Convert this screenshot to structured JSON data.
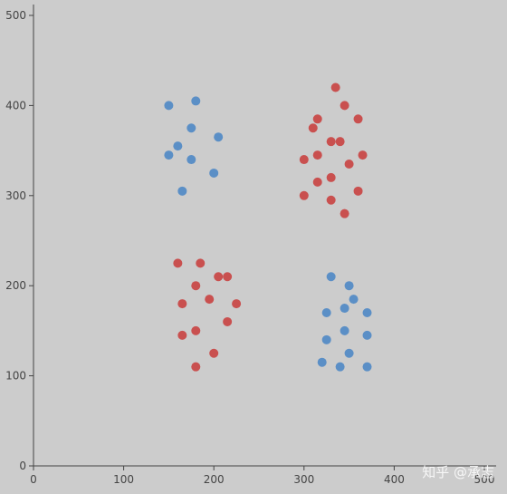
{
  "chart_data": {
    "type": "scatter",
    "title": "",
    "xlabel": "",
    "ylabel": "",
    "xlim": [
      0,
      500
    ],
    "ylim": [
      0,
      500
    ],
    "x_ticks": [
      "0",
      "100",
      "200",
      "300",
      "400",
      "500"
    ],
    "y_ticks": [
      "0",
      "100",
      "200",
      "300",
      "400",
      "500"
    ],
    "grid": false,
    "series": [
      {
        "color": "#5b8fc6",
        "points": [
          [
            180,
            405
          ],
          [
            150,
            400
          ],
          [
            175,
            375
          ],
          [
            205,
            365
          ],
          [
            160,
            355
          ],
          [
            150,
            345
          ],
          [
            175,
            340
          ],
          [
            200,
            325
          ],
          [
            165,
            305
          ],
          [
            330,
            210
          ],
          [
            350,
            200
          ],
          [
            355,
            185
          ],
          [
            345,
            175
          ],
          [
            325,
            170
          ],
          [
            370,
            170
          ],
          [
            345,
            150
          ],
          [
            370,
            145
          ],
          [
            325,
            140
          ],
          [
            350,
            125
          ],
          [
            320,
            115
          ],
          [
            340,
            110
          ],
          [
            370,
            110
          ]
        ]
      },
      {
        "color": "#c9504f",
        "points": [
          [
            335,
            420
          ],
          [
            345,
            400
          ],
          [
            315,
            385
          ],
          [
            360,
            385
          ],
          [
            310,
            375
          ],
          [
            330,
            360
          ],
          [
            340,
            360
          ],
          [
            315,
            345
          ],
          [
            365,
            345
          ],
          [
            300,
            340
          ],
          [
            350,
            335
          ],
          [
            330,
            320
          ],
          [
            315,
            315
          ],
          [
            300,
            300
          ],
          [
            330,
            295
          ],
          [
            360,
            305
          ],
          [
            345,
            280
          ],
          [
            160,
            225
          ],
          [
            185,
            225
          ],
          [
            205,
            210
          ],
          [
            215,
            210
          ],
          [
            180,
            200
          ],
          [
            195,
            185
          ],
          [
            165,
            180
          ],
          [
            225,
            180
          ],
          [
            215,
            160
          ],
          [
            180,
            150
          ],
          [
            165,
            145
          ],
          [
            200,
            125
          ],
          [
            180,
            110
          ]
        ]
      }
    ]
  },
  "watermark": "知乎 @承志"
}
